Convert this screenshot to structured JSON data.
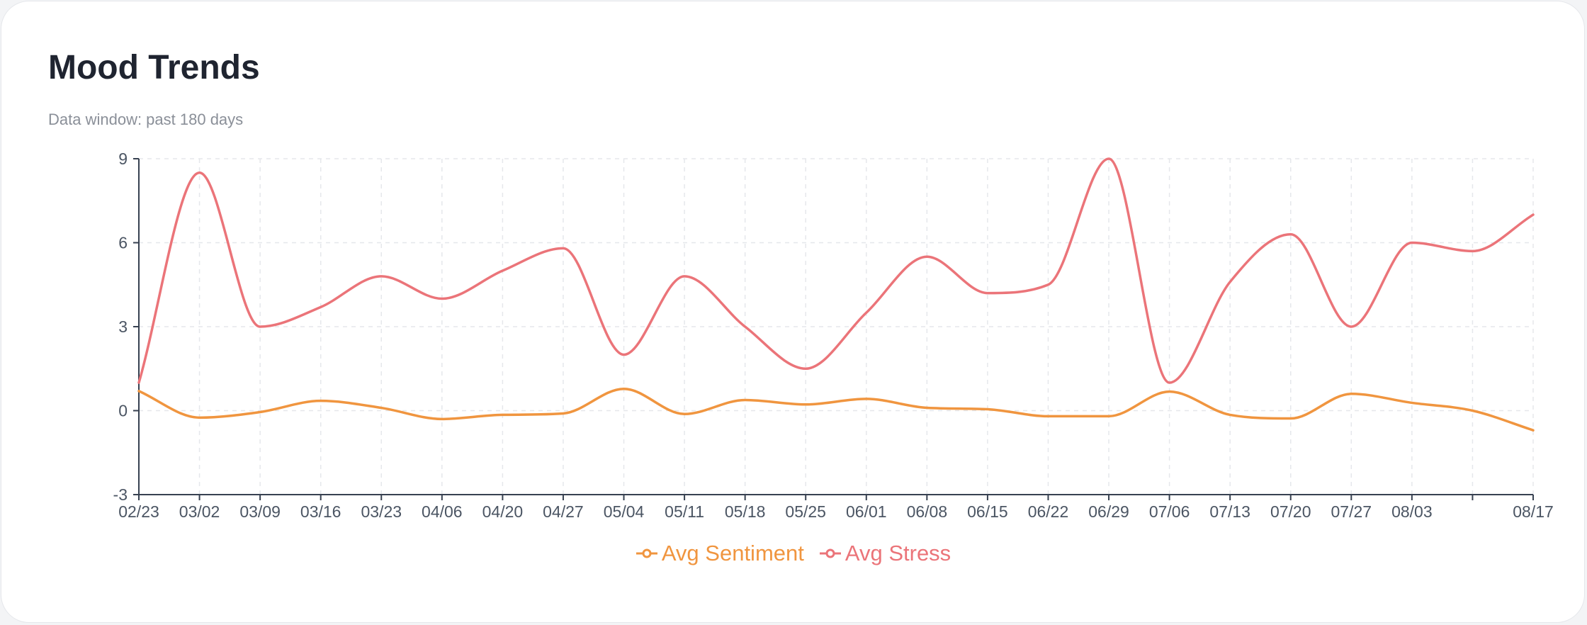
{
  "header": {
    "title": "Mood Trends",
    "subtitle": "Data window: past 180 days"
  },
  "colors": {
    "sentiment": "#f0953f",
    "stress": "#eb7479",
    "grid": "#e5e7eb",
    "axis": "#374151",
    "tick_text": "#4b5563"
  },
  "chart_data": {
    "type": "line",
    "x": [
      "02/23",
      "03/02",
      "03/09",
      "03/16",
      "03/23",
      "04/06",
      "04/20",
      "04/27",
      "05/04",
      "05/11",
      "05/18",
      "05/25",
      "06/01",
      "06/08",
      "06/15",
      "06/22",
      "06/29",
      "07/06",
      "07/13",
      "07/20",
      "07/27",
      "08/03",
      "",
      "08/17"
    ],
    "series": [
      {
        "name": "Avg Sentiment",
        "color": "#f0953f",
        "values": [
          0.7,
          -0.25,
          -0.05,
          0.35,
          0.1,
          -0.3,
          -0.15,
          -0.1,
          0.78,
          -0.12,
          0.38,
          0.22,
          0.42,
          0.1,
          0.05,
          -0.2,
          -0.2,
          0.68,
          -0.15,
          -0.28,
          0.6,
          0.28,
          0.0,
          -0.7
        ]
      },
      {
        "name": "Avg Stress",
        "color": "#eb7479",
        "values": [
          1.0,
          8.5,
          3.0,
          3.7,
          4.8,
          4.0,
          5.0,
          5.8,
          2.0,
          4.8,
          3.0,
          1.5,
          3.5,
          5.5,
          4.2,
          4.5,
          9.0,
          1.0,
          4.6,
          6.3,
          3.0,
          6.0,
          5.7,
          7.0
        ]
      }
    ],
    "xlabel": "",
    "ylabel": "",
    "ylim": [
      -3,
      9
    ],
    "yticks": [
      -3,
      0,
      3,
      6,
      9
    ],
    "grid": true,
    "legend": "bottom-center"
  }
}
